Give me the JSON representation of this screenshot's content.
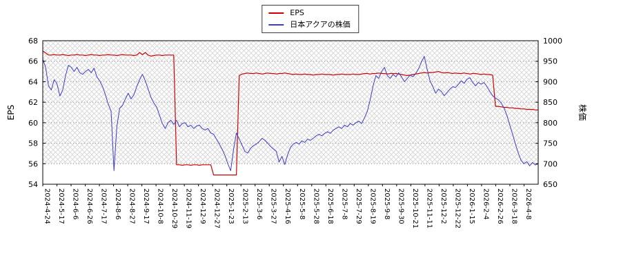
{
  "page": {
    "background": "#ffffff"
  },
  "legend": {
    "position": "top-center",
    "entries": [
      {
        "label": "EPS",
        "color": "#cc0000"
      },
      {
        "label": "日本アクアの株価",
        "color": "#3c3cc8"
      }
    ]
  },
  "chart_data": {
    "type": "line",
    "title": "",
    "grid": "horizontal-dotted",
    "hatch_background": {
      "from": 56,
      "to": 68,
      "color": "#d9d9d9"
    },
    "x_labels": [
      "2024-4-24",
      "2024-5-17",
      "2024-6-6",
      "2024-6-26",
      "2024-7-17",
      "2024-8-6",
      "2024-8-27",
      "2024-9-17",
      "2024-10-8",
      "2024-10-29",
      "2024-11-19",
      "2024-12-9",
      "2024-12-27",
      "2025-1-23",
      "2025-2-13",
      "2025-3-6",
      "2025-3-27",
      "2025-4-16",
      "2025-5-8",
      "2025-5-28",
      "2025-6-18",
      "2025-7-8",
      "2025-7-29",
      "2025-8-19",
      "2025-9-8",
      "2025-9-30",
      "2025-10-21",
      "2025-11-11",
      "2025-12-2",
      "2025-12-22",
      "2026-1-15",
      "2026-2-4",
      "2026-2-26",
      "2026-3-18",
      "2026-4-8"
    ],
    "left_axis": {
      "label": "EPS",
      "min": 54,
      "max": 68,
      "ticks": [
        68,
        66,
        64,
        62,
        60,
        58,
        56,
        54
      ]
    },
    "right_axis": {
      "label": "株価",
      "min": 650,
      "max": 1000,
      "ticks": [
        1000,
        950,
        900,
        850,
        800,
        750,
        700,
        650
      ]
    },
    "series": [
      {
        "name": "EPS",
        "axis": "left",
        "color": "#cc0000",
        "values": [
          67.0,
          66.8,
          66.6,
          66.6,
          66.65,
          66.6,
          66.6,
          66.65,
          66.6,
          66.55,
          66.6,
          66.6,
          66.65,
          66.6,
          66.6,
          66.55,
          66.6,
          66.65,
          66.6,
          66.6,
          66.55,
          66.6,
          66.6,
          66.65,
          66.6,
          66.6,
          66.55,
          66.6,
          66.65,
          66.6,
          66.6,
          66.6,
          66.55,
          66.6,
          66.85,
          66.65,
          66.85,
          66.6,
          66.5,
          66.55,
          66.6,
          66.6,
          66.55,
          66.6,
          66.6,
          66.6,
          66.6,
          55.9,
          55.9,
          55.85,
          55.9,
          55.9,
          55.85,
          55.9,
          55.9,
          55.85,
          55.9,
          55.9,
          55.9,
          55.9,
          54.9,
          54.9,
          54.9,
          54.9,
          54.9,
          54.9,
          54.9,
          54.9,
          54.9,
          64.6,
          64.75,
          64.8,
          64.85,
          64.8,
          64.8,
          64.85,
          64.8,
          64.75,
          64.8,
          64.85,
          64.8,
          64.8,
          64.75,
          64.8,
          64.8,
          64.85,
          64.8,
          64.75,
          64.7,
          64.75,
          64.7,
          64.7,
          64.75,
          64.7,
          64.7,
          64.65,
          64.7,
          64.7,
          64.75,
          64.7,
          64.7,
          64.7,
          64.65,
          64.7,
          64.7,
          64.75,
          64.7,
          64.7,
          64.7,
          64.75,
          64.7,
          64.7,
          64.75,
          64.8,
          64.8,
          64.75,
          64.8,
          64.8,
          64.85,
          64.8,
          64.8,
          64.75,
          64.8,
          64.8,
          64.8,
          64.75,
          64.7,
          64.65,
          64.6,
          64.65,
          64.7,
          64.75,
          64.8,
          64.85,
          64.9,
          64.85,
          64.9,
          64.9,
          64.95,
          65.0,
          64.9,
          64.85,
          64.9,
          64.85,
          64.8,
          64.85,
          64.8,
          64.8,
          64.85,
          64.8,
          64.75,
          64.8,
          64.8,
          64.75,
          64.7,
          64.75,
          64.7,
          64.7,
          64.65,
          61.6,
          61.6,
          61.55,
          61.5,
          61.5,
          61.45,
          61.45,
          61.4,
          61.4,
          61.35,
          61.35,
          61.3,
          61.3,
          61.3,
          61.25,
          61.25
        ]
      },
      {
        "name": "日本アクアの株価",
        "axis": "right",
        "color": "#3c3cc8",
        "values": [
          955,
          935,
          890,
          880,
          905,
          895,
          865,
          880,
          915,
          940,
          935,
          925,
          935,
          922,
          918,
          925,
          930,
          922,
          933,
          912,
          902,
          888,
          868,
          845,
          828,
          683,
          790,
          835,
          842,
          858,
          872,
          858,
          868,
          888,
          905,
          918,
          902,
          882,
          862,
          848,
          838,
          818,
          798,
          786,
          800,
          806,
          796,
          806,
          790,
          798,
          800,
          790,
          794,
          786,
          792,
          794,
          786,
          782,
          786,
          775,
          772,
          760,
          748,
          735,
          720,
          700,
          683,
          735,
          775,
          760,
          745,
          730,
          726,
          738,
          744,
          748,
          754,
          762,
          757,
          750,
          742,
          736,
          730,
          704,
          718,
          698,
          722,
          740,
          748,
          752,
          748,
          756,
          752,
          760,
          757,
          762,
          768,
          772,
          768,
          774,
          778,
          774,
          782,
          786,
          790,
          786,
          794,
          790,
          798,
          794,
          800,
          804,
          798,
          812,
          828,
          856,
          890,
          915,
          908,
          925,
          935,
          915,
          908,
          918,
          912,
          922,
          912,
          900,
          908,
          916,
          912,
          920,
          932,
          948,
          962,
          930,
          902,
          888,
          872,
          882,
          876,
          866,
          874,
          882,
          888,
          886,
          894,
          902,
          896,
          906,
          910,
          898,
          890,
          898,
          894,
          898,
          888,
          876,
          866,
          860,
          856,
          848,
          836,
          818,
          795,
          772,
          748,
          726,
          708,
          700,
          705,
          695,
          703,
          697,
          700
        ]
      }
    ]
  }
}
